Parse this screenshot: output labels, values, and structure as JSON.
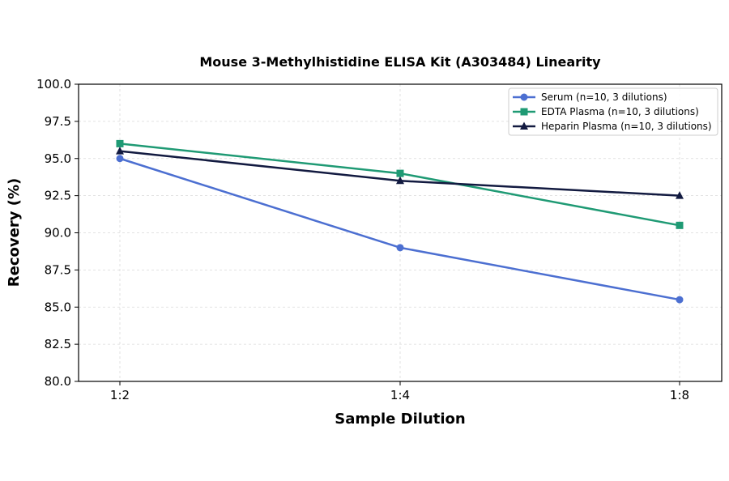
{
  "chart_data": {
    "type": "line",
    "title": "Mouse 3-Methylhistidine ELISA Kit (A303484) Linearity",
    "xlabel": "Sample Dilution",
    "ylabel": "Recovery (%)",
    "categories": [
      "1:2",
      "1:4",
      "1:8"
    ],
    "ylim": [
      80.0,
      100.0
    ],
    "yticks": [
      "80.0",
      "82.5",
      "85.0",
      "87.5",
      "90.0",
      "92.5",
      "95.0",
      "97.5",
      "100.0"
    ],
    "grid": true,
    "legend_position": "top-right",
    "series": [
      {
        "name": "Serum (n=10, 3 dilutions)",
        "values": [
          95.0,
          89.0,
          85.5
        ],
        "color": "#4c6fd1",
        "marker": "circle"
      },
      {
        "name": "EDTA Plasma (n=10, 3 dilutions)",
        "values": [
          96.0,
          94.0,
          90.5
        ],
        "color": "#1f9a74",
        "marker": "square"
      },
      {
        "name": "Heparin Plasma (n=10, 3 dilutions)",
        "values": [
          95.5,
          93.5,
          92.5
        ],
        "color": "#121a40",
        "marker": "triangle"
      }
    ]
  }
}
